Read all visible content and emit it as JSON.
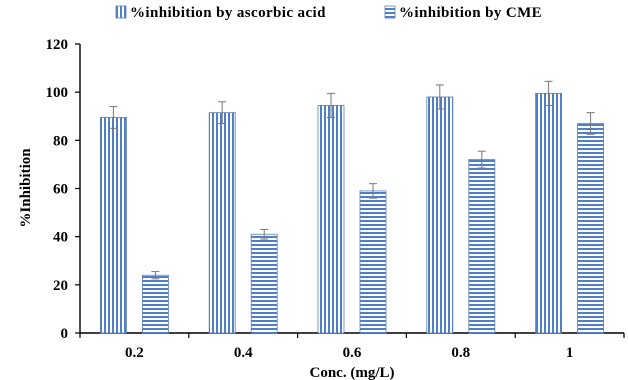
{
  "chart_data": {
    "type": "bar",
    "title": "",
    "xlabel": "Conc. (mg/L)",
    "ylabel": "%Inhibition",
    "categories": [
      "0.2",
      "0.4",
      "0.6",
      "0.8",
      "1"
    ],
    "ylim": [
      0,
      120
    ],
    "yticks": [
      "0",
      "20",
      "40",
      "60",
      "80",
      "100",
      "120"
    ],
    "grid": false,
    "legend_position": "top",
    "series": [
      {
        "name": "%inhibition by ascorbic acid",
        "values": [
          89.5,
          91.5,
          94.5,
          98,
          99.5
        ],
        "errors": [
          4.5,
          4.5,
          5,
          5,
          5
        ],
        "pattern": "vertical-stripes",
        "color": "#4f7fc4"
      },
      {
        "name": "%inhibition by CME",
        "values": [
          24,
          41,
          59,
          72,
          87
        ],
        "errors": [
          1.5,
          2,
          3,
          3.5,
          4.5
        ],
        "pattern": "horizontal-stripes",
        "color": "#4f7fc4"
      }
    ]
  }
}
